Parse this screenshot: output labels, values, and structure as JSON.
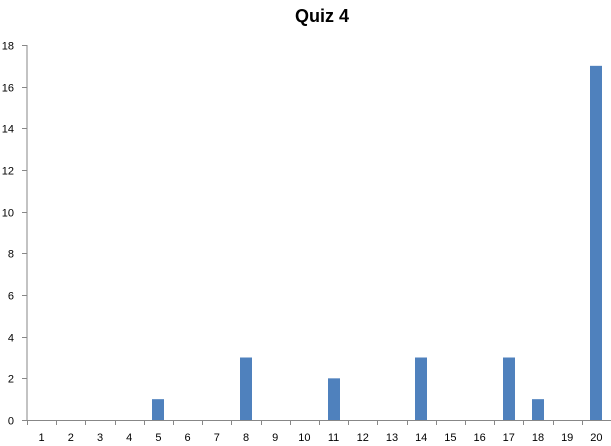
{
  "chart_data": {
    "type": "bar",
    "title": "Quiz 4",
    "xlabel": "",
    "ylabel": "",
    "categories": [
      "1",
      "2",
      "3",
      "4",
      "5",
      "6",
      "7",
      "8",
      "9",
      "10",
      "11",
      "12",
      "13",
      "14",
      "15",
      "16",
      "17",
      "18",
      "19",
      "20"
    ],
    "series": [
      {
        "values": [
          0,
          0,
          0,
          0,
          1,
          0,
          0,
          3,
          0,
          0,
          2,
          0,
          0,
          3,
          0,
          0,
          3,
          1,
          0,
          17
        ]
      }
    ],
    "ylim": [
      0,
      18
    ],
    "yticks": [
      "0",
      "2",
      "4",
      "6",
      "8",
      "10",
      "12",
      "14",
      "16",
      "18"
    ],
    "grid": false,
    "legend": "none",
    "colors": {
      "bar": "#4f81bd",
      "axis": "#878787"
    }
  }
}
